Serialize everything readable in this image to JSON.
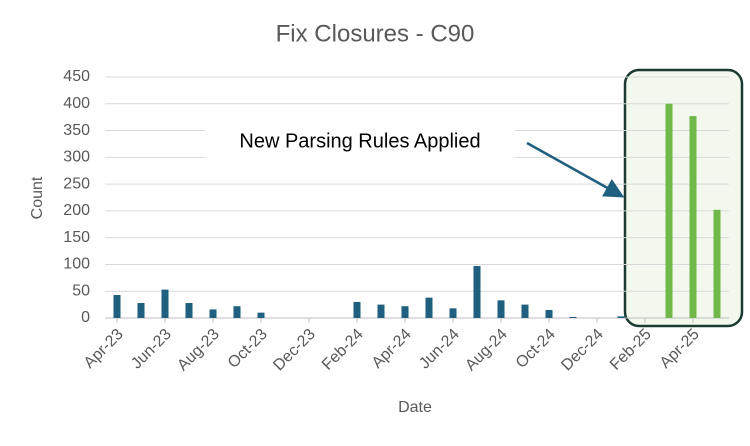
{
  "chart_data": {
    "type": "bar",
    "title": "Fix Closures - C90",
    "x_label": "Date",
    "y_label": "Count",
    "categories": [
      "Apr-23",
      null,
      "Jun-23",
      null,
      "Aug-23",
      null,
      "Oct-23",
      null,
      "Dec-23",
      null,
      "Feb-24",
      null,
      "Apr-24",
      null,
      "Jun-24",
      null,
      "Aug-24",
      null,
      "Oct-24",
      null,
      "Dec-24",
      null,
      "Feb-25",
      null,
      "Apr-25",
      null
    ],
    "values": [
      43,
      28,
      53,
      28,
      16,
      22,
      10,
      0,
      0,
      0,
      30,
      25,
      22,
      38,
      18,
      97,
      33,
      25,
      15,
      2,
      0,
      3,
      0,
      400,
      377,
      202
    ],
    "colors": [
      "#1f5f7f",
      "#1f5f7f",
      "#1f5f7f",
      "#1f5f7f",
      "#1f5f7f",
      "#1f5f7f",
      "#1f5f7f",
      "#1f5f7f",
      "#1f5f7f",
      "#1f5f7f",
      "#1f5f7f",
      "#1f5f7f",
      "#1f5f7f",
      "#1f5f7f",
      "#1f5f7f",
      "#1f5f7f",
      "#1f5f7f",
      "#1f5f7f",
      "#1f5f7f",
      "#1f5f7f",
      "#1f5f7f",
      "#1f5f7f",
      "#1f5f7f",
      "#70b84a",
      "#70b84a",
      "#70b84a"
    ],
    "ylim": [
      0,
      450
    ],
    "yticks": [
      0,
      50,
      100,
      150,
      200,
      250,
      300,
      350,
      400,
      450
    ],
    "grid": true,
    "annotation": "New Parsing Rules Applied"
  }
}
